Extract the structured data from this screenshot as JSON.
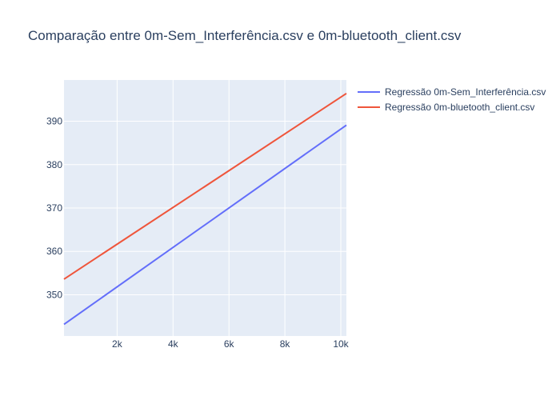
{
  "chart_data": {
    "type": "line",
    "title": "Comparação entre 0m-Sem_Interferência.csv e 0m-bluetooth_client.csv",
    "xlabel": "",
    "ylabel": "",
    "xlim": [
      100,
      10200
    ],
    "ylim": [
      340.5,
      399.5
    ],
    "x_ticks": [
      2000,
      4000,
      6000,
      8000,
      10000
    ],
    "x_tick_labels": [
      "2k",
      "4k",
      "6k",
      "8k",
      "10k"
    ],
    "y_ticks": [
      350,
      360,
      370,
      380,
      390
    ],
    "y_tick_labels": [
      "350",
      "360",
      "370",
      "380",
      "390"
    ],
    "grid": true,
    "legend_position": "right",
    "series": [
      {
        "name": "Regressão 0m-Sem_Interferência.csv",
        "color": "#636efa",
        "x": [
          100,
          10200
        ],
        "y": [
          343.2,
          389.1
        ]
      },
      {
        "name": "Regressão 0m-bluetooth_client.csv",
        "color": "#ef553b",
        "x": [
          100,
          10200
        ],
        "y": [
          353.6,
          396.4
        ]
      }
    ]
  }
}
